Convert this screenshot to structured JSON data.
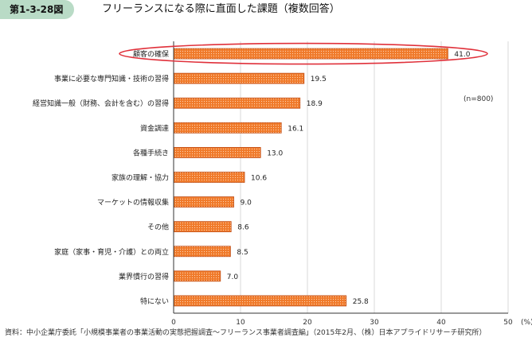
{
  "figure": {
    "number": "第1-3-28図",
    "title": "フリーランスになる際に直面した課題（複数回答）"
  },
  "chart_data": {
    "type": "bar",
    "orientation": "horizontal",
    "categories": [
      "顧客の確保",
      "事業に必要な専門知識・技術の習得",
      "経営知識一般（財務、会計を含む）の習得",
      "資金調達",
      "各種手続き",
      "家族の理解・協力",
      "マーケットの情報収集",
      "その他",
      "家庭（家事・育児・介護）との両立",
      "業界慣行の習得",
      "特にない"
    ],
    "values": [
      41.0,
      19.5,
      18.9,
      16.1,
      13.0,
      10.6,
      9.0,
      8.6,
      8.5,
      7.0,
      25.8
    ],
    "value_labels": [
      "41.0",
      "19.5",
      "18.9",
      "16.1",
      "13.0",
      "10.6",
      "9.0",
      "8.6",
      "8.5",
      "7.0",
      "25.8"
    ],
    "xlim": [
      0,
      50
    ],
    "xticks": [
      0,
      10,
      20,
      30,
      40,
      50
    ],
    "x_unit": "(%)",
    "annotation": "(n=800)",
    "highlighted_category": "顧客の確保",
    "grid": true,
    "colors": {
      "bar_fill": "#f07a2a",
      "bar_stroke": "#c0501a",
      "highlight_ring": "#e0303a",
      "grid": "#d8d8d8"
    }
  },
  "footer": {
    "source": "資料：中小企業庁委託「小規模事業者の事業活動の実態把握調査～フリーランス事業者調査編」（2015年2月、（株）日本アプライドリサーチ研究所）"
  }
}
